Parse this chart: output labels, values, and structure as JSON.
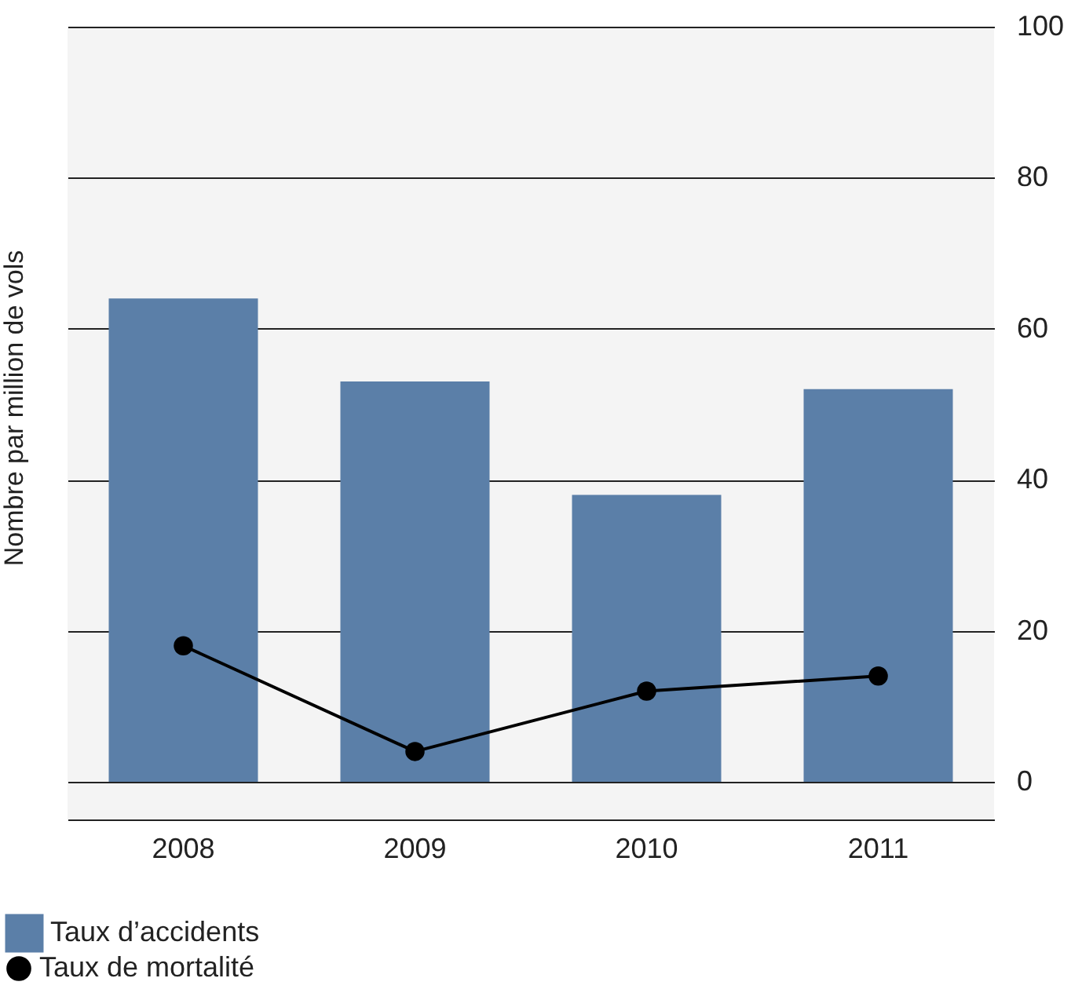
{
  "chart_data": {
    "type": "bar",
    "ylabel": "Nombre par million de vols",
    "categories": [
      "2008",
      "2009",
      "2010",
      "2011"
    ],
    "series": [
      {
        "name": "Taux d’accidents",
        "color": "#5b7fa8",
        "values": [
          64,
          53,
          38,
          52
        ]
      },
      {
        "name": "Taux de mortalité",
        "type": "line",
        "color": "#000000",
        "marker": "circle",
        "values": [
          18,
          4,
          12,
          14
        ]
      }
    ],
    "ylim": [
      -5,
      100
    ],
    "yticks": [
      0,
      20,
      40,
      60,
      80,
      100
    ],
    "grid": "y",
    "legend": "bottom left"
  }
}
